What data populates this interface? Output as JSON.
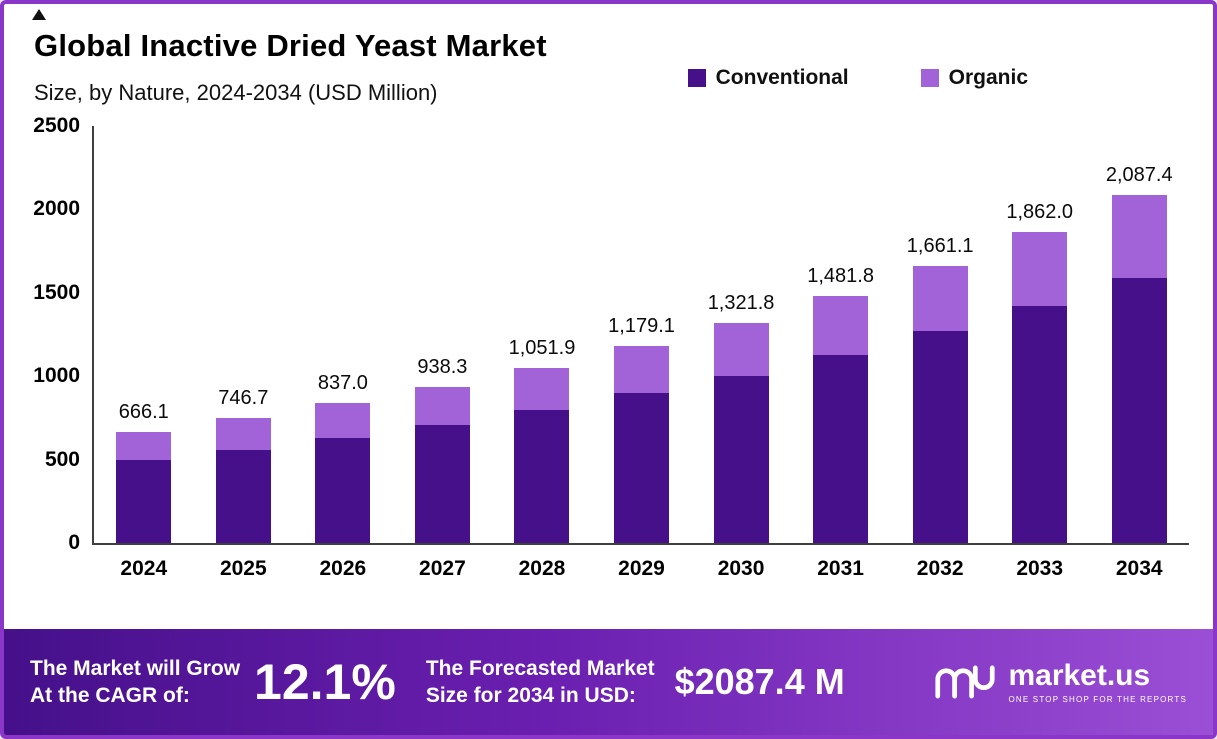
{
  "header": {
    "title": "Global Inactive Dried Yeast Market",
    "subtitle": "Size, by Nature, 2024-2034 (USD Million)"
  },
  "chart_data": {
    "type": "bar",
    "stacked": true,
    "title": "Global Inactive Dried Yeast Market Size, by Nature, 2024-2034 (USD Million)",
    "categories": [
      "2024",
      "2025",
      "2026",
      "2027",
      "2028",
      "2029",
      "2030",
      "2031",
      "2032",
      "2033",
      "2034"
    ],
    "series": [
      {
        "name": "Conventional",
        "color": "#45108a",
        "values": [
          500,
          560,
          630,
          710,
          800,
          900,
          1000,
          1130,
          1270,
          1420,
          1590
        ]
      },
      {
        "name": "Organic",
        "color": "#a262d8",
        "values": [
          166.1,
          186.7,
          207.0,
          228.3,
          251.9,
          279.1,
          321.8,
          351.8,
          391.1,
          442.0,
          497.4
        ]
      }
    ],
    "totals": [
      "666.1",
      "746.7",
      "837.0",
      "938.3",
      "1,051.9",
      "1,179.1",
      "1,321.8",
      "1,481.8",
      "1,661.1",
      "1,862.0",
      "2,087.4"
    ],
    "total_values": [
      666.1,
      746.7,
      837.0,
      938.3,
      1051.9,
      1179.1,
      1321.8,
      1481.8,
      1661.1,
      1862.0,
      2087.4
    ],
    "xlabel": "",
    "ylabel": "",
    "ylim": [
      0,
      2500
    ],
    "yticks": [
      "2500",
      "2000",
      "1500",
      "1000",
      "500",
      "0"
    ],
    "grid": false,
    "legend_position": "top-right"
  },
  "footer": {
    "cagr_label_line1": "The Market will Grow",
    "cagr_label_line2": "At the CAGR of:",
    "cagr_value": "12.1%",
    "forecast_label_line1": "The Forecasted Market",
    "forecast_label_line2": "Size for 2034 in USD:",
    "forecast_value": "$2087.4 M",
    "brand": "market.us",
    "brand_tagline": "ONE STOP SHOP FOR THE REPORTS"
  }
}
